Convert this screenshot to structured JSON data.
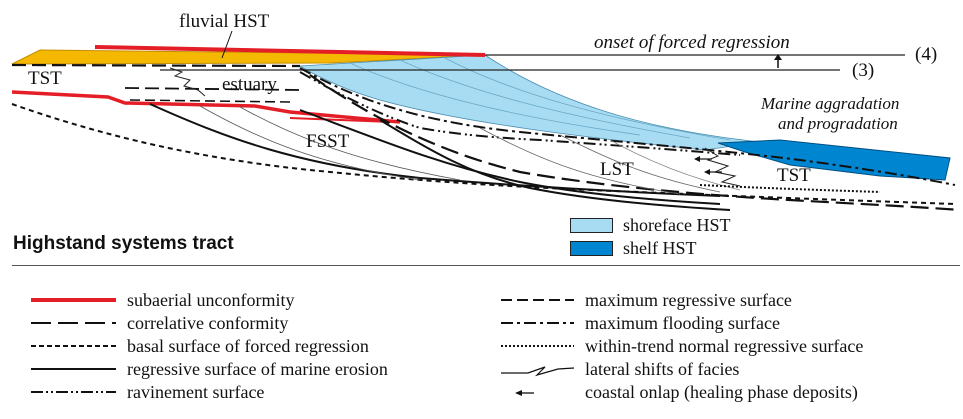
{
  "diagram": {
    "labels": {
      "fluvial_hst": "fluvial HST",
      "onset": "onset of forced regression",
      "num4": "(4)",
      "num3": "(3)",
      "tst_left": "TST",
      "estuary": "estuary",
      "marine_agg_1": "Marine aggradation",
      "marine_agg_2": "and progradation",
      "fsst": "FSST",
      "lst": "LST",
      "tst_right": "TST"
    },
    "colors": {
      "fluvial": "#f5b800",
      "shoreface": "#a8dcf2",
      "shelf": "#0086d1",
      "unconformity": "#e41e26"
    }
  },
  "panel_title": "Highstand systems tract",
  "color_key": [
    {
      "label": "shoreface HST",
      "color": "#a8dcf2"
    },
    {
      "label": "shelf HST",
      "color": "#0086d1"
    }
  ],
  "legend": {
    "left": [
      {
        "label": "subaerial unconformity",
        "style": "red-solid"
      },
      {
        "label": "correlative conformity",
        "style": "long-dash"
      },
      {
        "label": "basal surface of forced regression",
        "style": "short-dash"
      },
      {
        "label": "regressive surface of marine erosion",
        "style": "solid"
      },
      {
        "label": "ravinement surface",
        "style": "dash-dot-dot"
      }
    ],
    "right": [
      {
        "label": "maximum regressive surface",
        "style": "medium-dash"
      },
      {
        "label": "maximum flooding surface",
        "style": "dash-dot"
      },
      {
        "label": "within-trend normal regressive surface",
        "style": "dotted"
      },
      {
        "label": "lateral shifts of facies",
        "style": "zigzag"
      },
      {
        "label": "coastal onlap (healing phase deposits)",
        "style": "arrow"
      }
    ]
  }
}
